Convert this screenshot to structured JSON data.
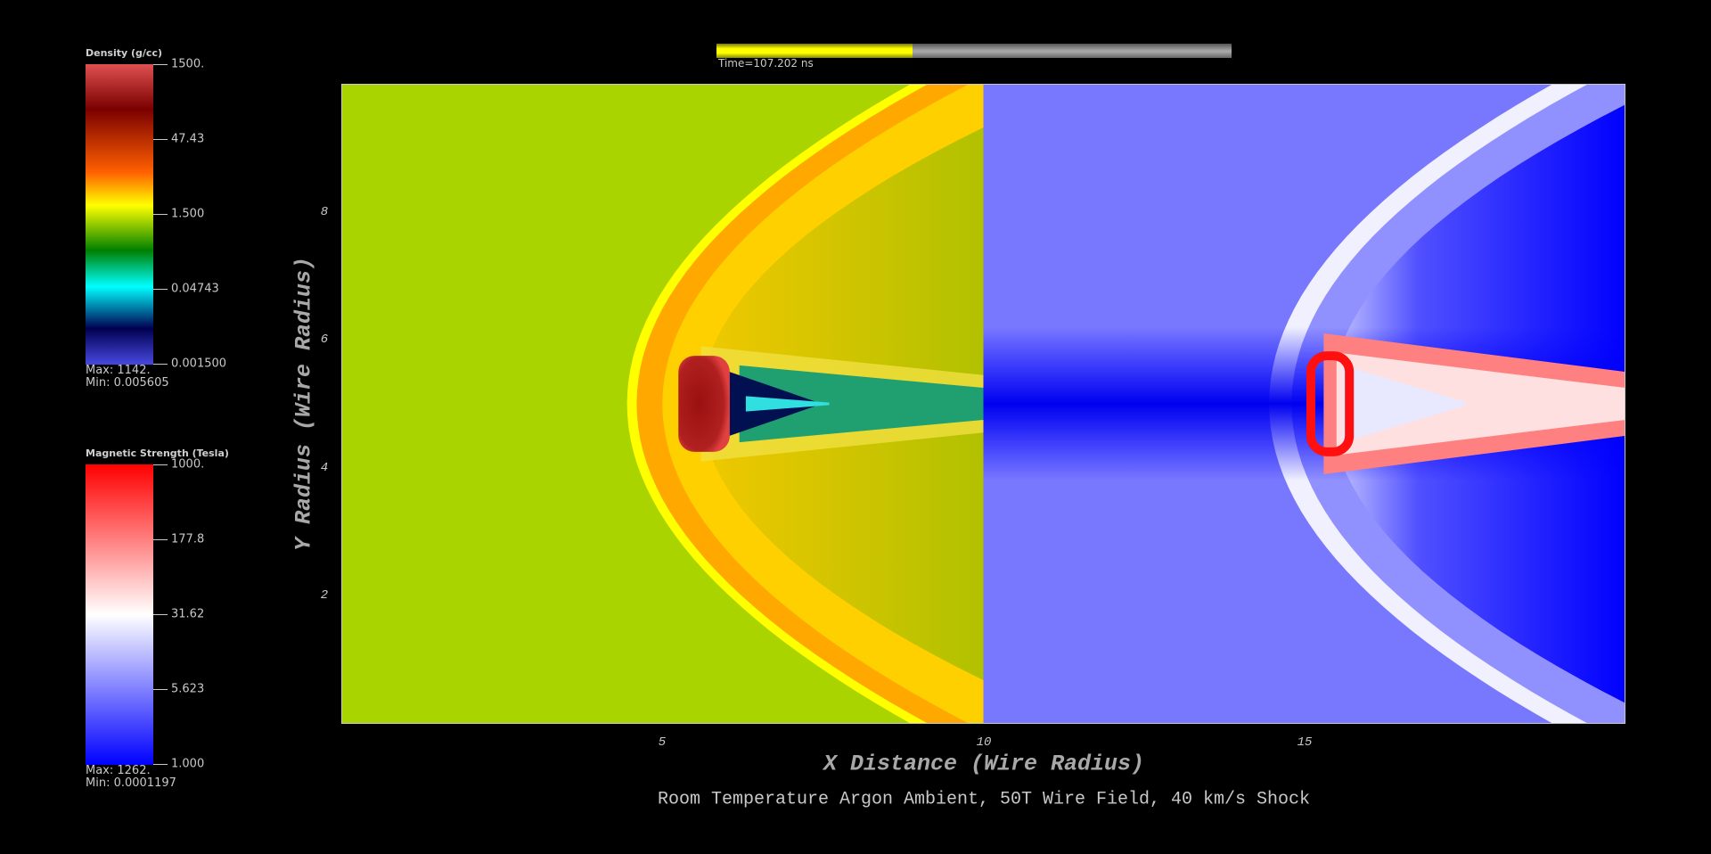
{
  "time": {
    "label": "Time=107.202 ns",
    "progress": 0.38,
    "fill_color": "#ffff00",
    "track_color": "#999999"
  },
  "legends": {
    "density": {
      "title": "Density (g/cc)",
      "ticks": [
        "1500.",
        "47.43",
        "1.500",
        "0.04743",
        "0.001500"
      ],
      "max": "Max:  1142.",
      "min": "Min:  0.005605",
      "colors": [
        "#e05050",
        "#7a0000",
        "#ff6000",
        "#ffff00",
        "#008000",
        "#00ffff",
        "#000050",
        "#4848e0"
      ]
    },
    "magnetic": {
      "title": "Magnetic Strength (Tesla)",
      "ticks": [
        "1000.",
        "177.8",
        "31.62",
        "5.623",
        "1.000"
      ],
      "max": "Max:  1262.",
      "min": "Min:  0.0001197",
      "colors": [
        "#ff0000",
        "#ffffff",
        "#0000ff"
      ]
    }
  },
  "chart_data": {
    "type": "heatmap",
    "title": "Room Temperature Argon Ambient, 50T Wire Field, 40 km/s Shock",
    "xlabel": "X Distance (Wire Radius)",
    "ylabel": "Y Radius (Wire Radius)",
    "xlim": [
      0,
      20
    ],
    "ylim": [
      0,
      10
    ],
    "xticks": [
      "5",
      "10",
      "15"
    ],
    "yticks": [
      "2",
      "4",
      "6",
      "8"
    ],
    "grid": false,
    "panels": [
      {
        "field": "Density (g/cc)",
        "x_range": [
          0,
          10
        ],
        "ambient_color": "#aad400"
      },
      {
        "field": "Magnetic Strength (Tesla)",
        "x_range": [
          10,
          20
        ],
        "ambient_color": "#7878ff"
      }
    ]
  }
}
